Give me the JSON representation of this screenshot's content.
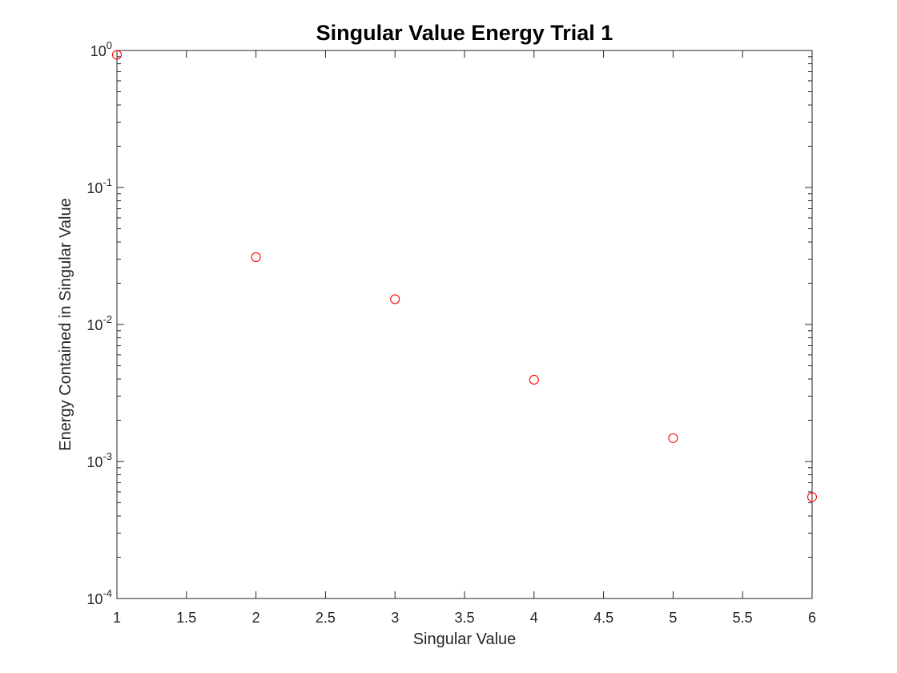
{
  "chart_data": {
    "type": "scatter",
    "title": "Singular Value Energy Trial 1",
    "xlabel": "Singular Value",
    "ylabel": "Energy Contained in Singular Value",
    "xlim": [
      1,
      6
    ],
    "ylim": [
      0.0001,
      1
    ],
    "yscale": "log",
    "x_ticks": [
      1,
      1.5,
      2,
      2.5,
      3,
      3.5,
      4,
      4.5,
      5,
      5.5,
      6
    ],
    "x_tick_labels": [
      "1",
      "1.5",
      "2",
      "2.5",
      "3",
      "3.5",
      "4",
      "4.5",
      "5",
      "5.5",
      "6"
    ],
    "y_ticks": [
      0.0001,
      0.001,
      0.01,
      0.1,
      1
    ],
    "y_tick_labels": [
      {
        "base": "10",
        "exp": "-4"
      },
      {
        "base": "10",
        "exp": "-3"
      },
      {
        "base": "10",
        "exp": "-2"
      },
      {
        "base": "10",
        "exp": "-1"
      },
      {
        "base": "10",
        "exp": "0"
      }
    ],
    "grid": false,
    "marker": "circle-open",
    "marker_color": "#ff0000",
    "axis_color": "#262626",
    "points": [
      {
        "x": 1,
        "y": 0.93
      },
      {
        "x": 2,
        "y": 0.031
      },
      {
        "x": 3,
        "y": 0.0153
      },
      {
        "x": 4,
        "y": 0.00395
      },
      {
        "x": 5,
        "y": 0.00148
      },
      {
        "x": 6,
        "y": 0.00055
      }
    ]
  }
}
